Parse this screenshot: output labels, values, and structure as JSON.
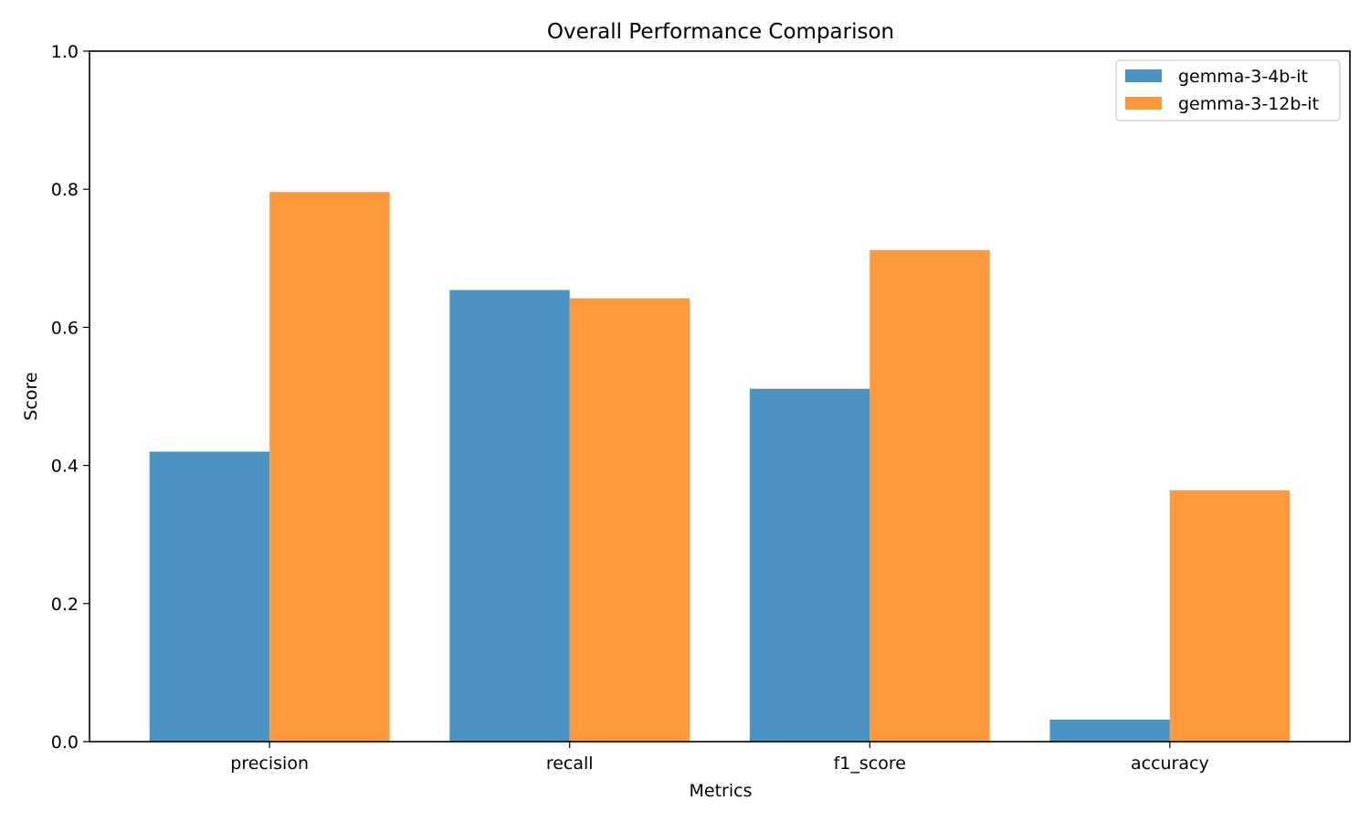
{
  "chart_data": {
    "type": "bar",
    "title": "Overall Performance Comparison",
    "xlabel": "Metrics",
    "ylabel": "Score",
    "categories": [
      "precision",
      "recall",
      "f1_score",
      "accuracy"
    ],
    "series": [
      {
        "name": "gemma-3-4b-it",
        "color": "#4c92c3",
        "values": [
          0.42,
          0.654,
          0.511,
          0.032
        ]
      },
      {
        "name": "gemma-3-12b-it",
        "color": "#ff993e",
        "values": [
          0.796,
          0.642,
          0.712,
          0.364
        ]
      }
    ],
    "ylim": [
      0,
      1.0
    ],
    "yticks": [
      "0.0",
      "0.2",
      "0.4",
      "0.6",
      "0.8",
      "1.0"
    ],
    "grid": false,
    "legend_position": "top-right"
  }
}
